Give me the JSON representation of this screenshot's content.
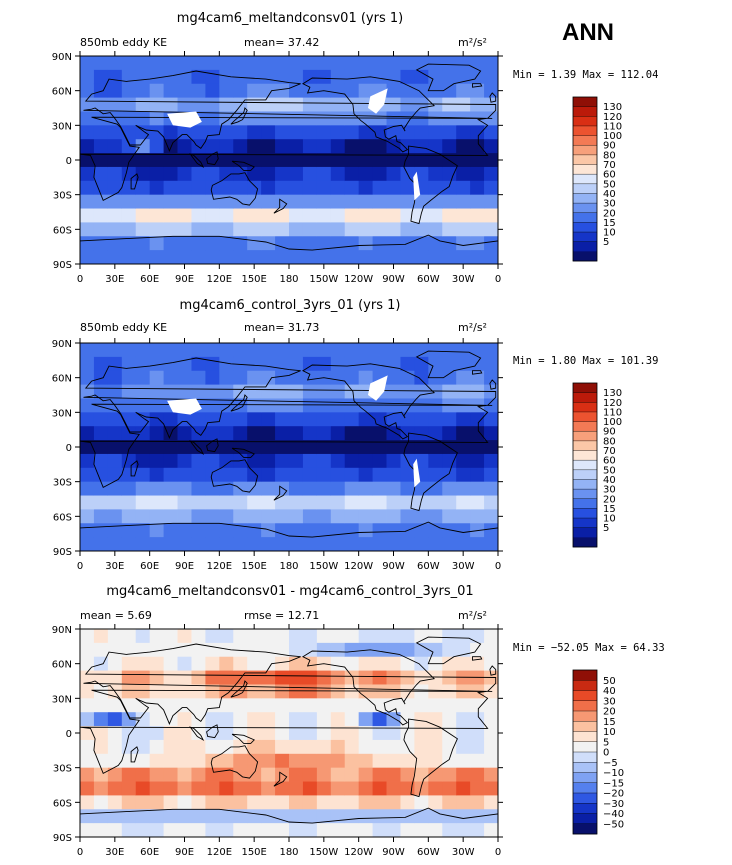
{
  "season": "ANN",
  "colors": {
    "base": [
      "#08106b",
      "#0a1fa6",
      "#1535c8",
      "#2750e0",
      "#4472ea",
      "#6a92f0",
      "#93b3f5",
      "#bcd0f8",
      "#dde7fb",
      "#fde6d6",
      "#fbc7a7",
      "#f7a07b",
      "#f37a55",
      "#ec5330",
      "#d92f14",
      "#bb1a0a",
      "#8f0f06"
    ],
    "diff": [
      "#08106b",
      "#0a1fa6",
      "#1535c8",
      "#2f58e3",
      "#5580ee",
      "#7fa2f3",
      "#a9c2f7",
      "#d0defa",
      "#f2f2f2",
      "#fde3d2",
      "#fbc1a0",
      "#f69873",
      "#f06f49",
      "#e84a27",
      "#c92a12",
      "#8f0f06"
    ],
    "land": "#ffffff",
    "coast": "#000000"
  },
  "panels": [
    {
      "title": "mg4cam6_meltandconsv01 (yrs 1)",
      "left_label": "850mb eddy KE",
      "stat1": "mean=  37.42",
      "stat2": "",
      "units": "m²/s²",
      "minmax": "Min =   1.39 Max = 112.04",
      "colorbar_labels": [
        "130",
        "120",
        "110",
        "100",
        "90",
        "80",
        "70",
        "60",
        "50",
        "40",
        "30",
        "20",
        "15",
        "10",
        "5"
      ]
    },
    {
      "title": "mg4cam6_control_3yrs_01 (yrs 1)",
      "left_label": "850mb eddy KE",
      "stat1": "mean=  31.73",
      "stat2": "",
      "units": "m²/s²",
      "minmax": "Min =   1.80 Max = 101.39",
      "colorbar_labels": [
        "130",
        "120",
        "110",
        "100",
        "90",
        "80",
        "70",
        "60",
        "50",
        "40",
        "30",
        "20",
        "15",
        "10",
        "5"
      ]
    },
    {
      "title": "mg4cam6_meltandconsv01 - mg4cam6_control_3yrs_01",
      "left_label": "mean =   5.69",
      "stat1": "rmse =  12.71",
      "stat2": "",
      "units": "m²/s²",
      "minmax": "Min = −52.05 Max =  64.33",
      "colorbar_labels": [
        "50",
        "40",
        "30",
        "20",
        "15",
        "10",
        "5",
        "0",
        "−5",
        "−10",
        "−15",
        "−20",
        "−30",
        "−40",
        "−50"
      ]
    }
  ],
  "chart_data": [
    {
      "type": "heatmap",
      "title": "mg4cam6_meltandconsv01 (yrs 1)",
      "variable": "850mb eddy KE",
      "units": "m2/s2",
      "mean": 37.42,
      "min": 1.39,
      "max": 112.04,
      "levels": [
        5,
        10,
        15,
        20,
        30,
        40,
        50,
        60,
        70,
        80,
        90,
        100,
        110,
        120,
        130
      ],
      "x_ticks": [
        "0",
        "30E",
        "60E",
        "90E",
        "120E",
        "150E",
        "180",
        "150W",
        "120W",
        "90W",
        "60W",
        "30W",
        "0"
      ],
      "y_ticks": [
        "90N",
        "60N",
        "30N",
        "0",
        "30S",
        "60S",
        "90S"
      ],
      "lon_range": [
        0,
        360
      ],
      "lat_range": [
        -90,
        90
      ]
    },
    {
      "type": "heatmap",
      "title": "mg4cam6_control_3yrs_01 (yrs 1)",
      "variable": "850mb eddy KE",
      "units": "m2/s2",
      "mean": 31.73,
      "min": 1.8,
      "max": 101.39,
      "levels": [
        5,
        10,
        15,
        20,
        30,
        40,
        50,
        60,
        70,
        80,
        90,
        100,
        110,
        120,
        130
      ],
      "x_ticks": [
        "0",
        "30E",
        "60E",
        "90E",
        "120E",
        "150E",
        "180",
        "150W",
        "120W",
        "90W",
        "60W",
        "30W",
        "0"
      ],
      "y_ticks": [
        "90N",
        "60N",
        "30N",
        "0",
        "30S",
        "60S",
        "90S"
      ],
      "lon_range": [
        0,
        360
      ],
      "lat_range": [
        -90,
        90
      ]
    },
    {
      "type": "heatmap",
      "title": "mg4cam6_meltandconsv01 - mg4cam6_control_3yrs_01",
      "units": "m2/s2",
      "mean": 5.69,
      "rmse": 12.71,
      "min": -52.05,
      "max": 64.33,
      "levels": [
        -50,
        -40,
        -30,
        -20,
        -15,
        -10,
        -5,
        0,
        5,
        10,
        15,
        20,
        30,
        40,
        50
      ],
      "x_ticks": [
        "0",
        "30E",
        "60E",
        "90E",
        "120E",
        "150E",
        "180",
        "150W",
        "120W",
        "90W",
        "60W",
        "30W",
        "0"
      ],
      "y_ticks": [
        "90N",
        "60N",
        "30N",
        "0",
        "30S",
        "60S",
        "90S"
      ],
      "lon_range": [
        0,
        360
      ],
      "lat_range": [
        -90,
        90
      ]
    }
  ]
}
